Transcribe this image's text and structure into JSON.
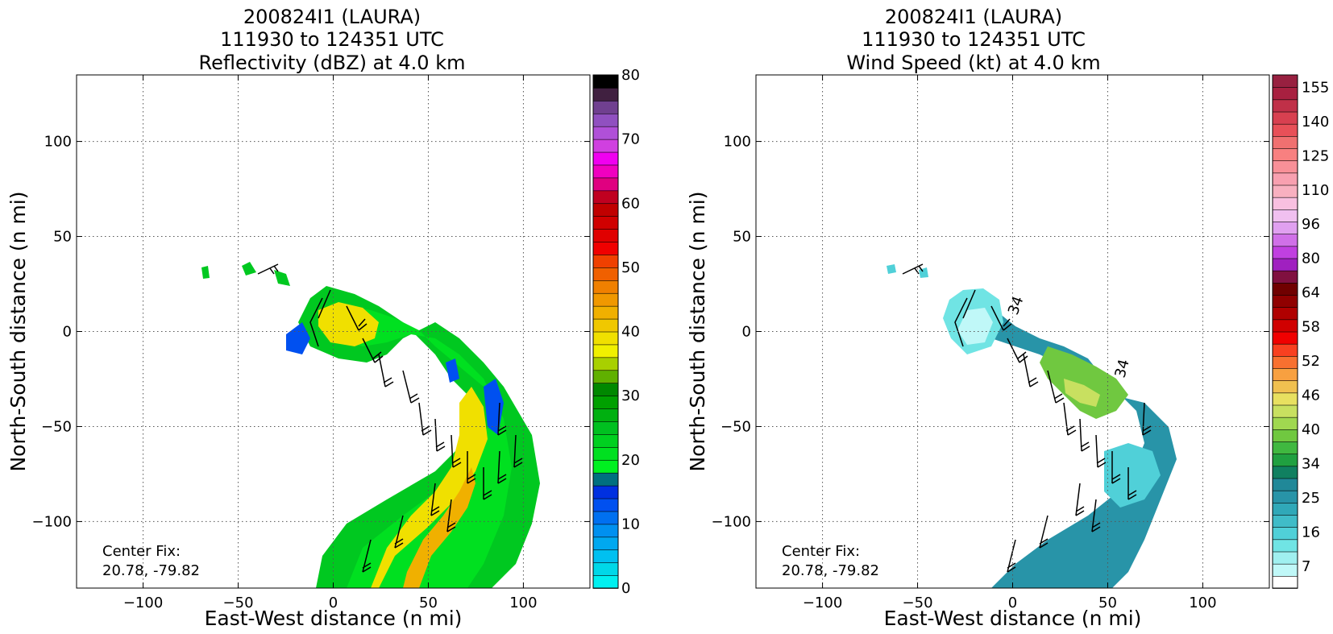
{
  "chart_data": [
    {
      "type": "heatmap",
      "title_lines": [
        "200824I1 (LAURA)",
        "111930 to 124351 UTC",
        "Reflectivity (dBZ) at 4.0 km"
      ],
      "xlabel": "East-West distance (n mi)",
      "ylabel": "North-South distance (n mi)",
      "xlim": [
        -135,
        135
      ],
      "ylim": [
        -135,
        135
      ],
      "xticks": [
        -100,
        -50,
        0,
        50,
        100
      ],
      "yticks": [
        -100,
        -50,
        0,
        50,
        100
      ],
      "grid": true,
      "annotation": [
        "Center Fix:",
        "20.78, -79.82"
      ],
      "colorbar": {
        "min": 0,
        "max": 80,
        "ticks": [
          0,
          10,
          20,
          30,
          40,
          50,
          60,
          70,
          80
        ],
        "colors": [
          "#00f0f0",
          "#00d8e8",
          "#00c0f0",
          "#00a8f0",
          "#0090f0",
          "#0070f0",
          "#0050f0",
          "#0030e0",
          "#007080",
          "#00f020",
          "#00e020",
          "#00d020",
          "#00c020",
          "#00b010",
          "#00a000",
          "#008800",
          "#60b000",
          "#a8d000",
          "#f0f000",
          "#f0e000",
          "#f0c800",
          "#f0b000",
          "#f09800",
          "#f08000",
          "#f06000",
          "#f04000",
          "#f00000",
          "#e00000",
          "#d00000",
          "#c00000",
          "#c00020",
          "#e00080",
          "#f000c0",
          "#f000f0",
          "#d040e0",
          "#b050d8",
          "#9050c0",
          "#704090",
          "#402040",
          "#000000"
        ]
      },
      "wind_units": "kt"
    },
    {
      "type": "heatmap",
      "title_lines": [
        "200824I1 (LAURA)",
        "111930 to 124351 UTC",
        "Wind Speed (kt) at 4.0 km"
      ],
      "xlabel": "East-West distance (n mi)",
      "ylabel": "North-South distance (n mi)",
      "xlim": [
        -135,
        135
      ],
      "ylim": [
        -135,
        135
      ],
      "xticks": [
        -100,
        -50,
        0,
        50,
        100
      ],
      "yticks": [
        -100,
        -50,
        0,
        50,
        100
      ],
      "grid": true,
      "annotation": [
        "Center Fix:",
        "20.78, -79.82"
      ],
      "contour_label": "34",
      "colorbar": {
        "labels": [
          "7",
          "16",
          "25",
          "34",
          "40",
          "46",
          "52",
          "58",
          "64",
          "80",
          "96",
          "110",
          "125",
          "140",
          "155"
        ],
        "colors": [
          "#ffffff",
          "#c0f8f8",
          "#a0f0f0",
          "#70e4e4",
          "#50d0d8",
          "#40bcc8",
          "#30a8b8",
          "#2894a8",
          "#208898",
          "#108060",
          "#20a040",
          "#40b840",
          "#70c840",
          "#a0d850",
          "#c8e060",
          "#e8e060",
          "#f0c050",
          "#f8a040",
          "#f87030",
          "#f84020",
          "#f00000",
          "#d00000",
          "#b00000",
          "#900000",
          "#700000",
          "#801040",
          "#a020c0",
          "#c040e0",
          "#d070e8",
          "#e0a0f0",
          "#f0c0f0",
          "#f8c0e0",
          "#f8b0c0",
          "#f8a0b0",
          "#f89098",
          "#f88080",
          "#f07070",
          "#e85058",
          "#d84050",
          "#c03048",
          "#a82040",
          "#982040"
        ]
      }
    }
  ]
}
